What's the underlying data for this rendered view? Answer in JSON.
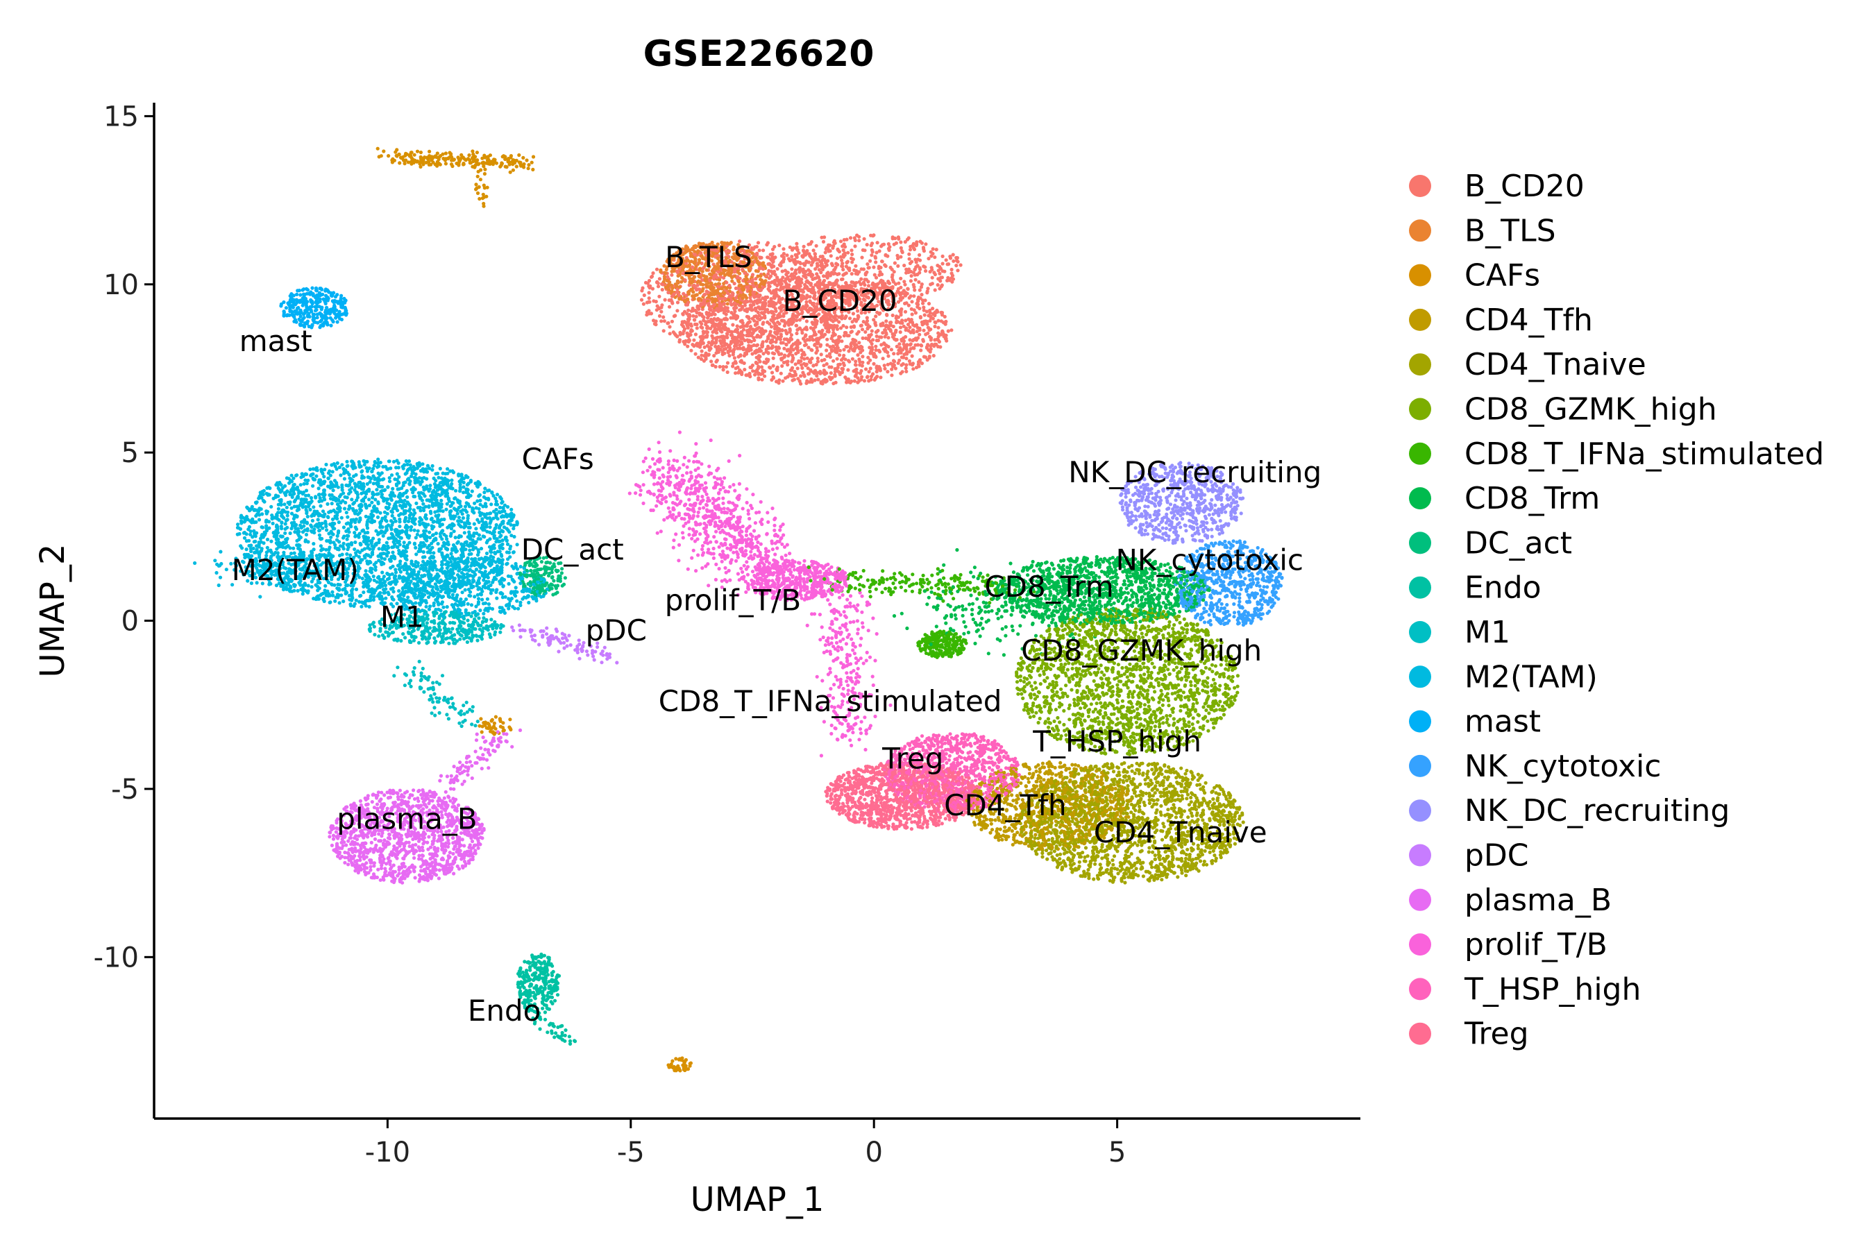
{
  "chart_data": {
    "type": "scatter",
    "title": "GSE226620",
    "xlabel": "UMAP_1",
    "ylabel": "UMAP_2",
    "xlim": [
      -14.8,
      10.0
    ],
    "ylim": [
      -14.8,
      15.4
    ],
    "x_ticks": [
      -10,
      -5,
      0,
      5
    ],
    "y_ticks": [
      -10,
      -5,
      0,
      5,
      10,
      15
    ],
    "grid": false,
    "legend_position": "right",
    "series": [
      {
        "name": "B_CD20",
        "color": "#F8766D",
        "label": "B_CD20",
        "label_x": -0.7,
        "label_y": 9.5
      },
      {
        "name": "B_TLS",
        "color": "#EA8331",
        "label": "B_TLS",
        "label_x": -3.4,
        "label_y": 10.8
      },
      {
        "name": "CAFs",
        "color": "#D89000",
        "label": "CAFs",
        "label_x": -6.5,
        "label_y": 4.8
      },
      {
        "name": "CD4_Tfh",
        "color": "#C09B00",
        "label": "CD4_Tfh",
        "label_x": 2.7,
        "label_y": -5.5
      },
      {
        "name": "CD4_Tnaive",
        "color": "#A3A500",
        "label": "CD4_Tnaive",
        "label_x": 6.3,
        "label_y": -6.3
      },
      {
        "name": "CD8_GZMK_high",
        "color": "#7CAE00",
        "label": "CD8_GZMK_high",
        "label_x": 5.5,
        "label_y": -0.9
      },
      {
        "name": "CD8_T_IFNa_stimulated",
        "color": "#39B600",
        "label": "CD8_T_IFNa_stimulated",
        "label_x": -0.9,
        "label_y": -2.4
      },
      {
        "name": "CD8_Trm",
        "color": "#00BB4E",
        "label": "CD8_Trm",
        "label_x": 3.6,
        "label_y": 1.0
      },
      {
        "name": "DC_act",
        "color": "#00BF7D",
        "label": "DC_act",
        "label_x": -6.2,
        "label_y": 2.1
      },
      {
        "name": "Endo",
        "color": "#00C1A3",
        "label": "Endo",
        "label_x": -7.6,
        "label_y": -11.6
      },
      {
        "name": "M1",
        "color": "#00BFC4",
        "label": "M1",
        "label_x": -9.7,
        "label_y": 0.1
      },
      {
        "name": "M2(TAM)",
        "color": "#00BAE0",
        "label": "M2(TAM)",
        "label_x": -11.9,
        "label_y": 1.5
      },
      {
        "name": "mast",
        "color": "#00B0F6",
        "label": "mast",
        "label_x": -12.3,
        "label_y": 8.3
      },
      {
        "name": "NK_cytotoxic",
        "color": "#35A2FF",
        "label": "NK_cytotoxic",
        "label_x": 6.9,
        "label_y": 1.8
      },
      {
        "name": "NK_DC_recruiting",
        "color": "#9590FF",
        "label": "NK_DC_recruiting",
        "label_x": 6.6,
        "label_y": 4.4
      },
      {
        "name": "pDC",
        "color": "#C77CFF",
        "label": "pDC",
        "label_x": -5.3,
        "label_y": -0.3
      },
      {
        "name": "plasma_B",
        "color": "#E76BF3",
        "label": "plasma_B",
        "label_x": -9.6,
        "label_y": -5.9
      },
      {
        "name": "prolif_T/B",
        "color": "#FA62DB",
        "label": "prolif_T/B",
        "label_x": -2.9,
        "label_y": 0.6
      },
      {
        "name": "T_HSP_high",
        "color": "#FF62BC",
        "label": "T_HSP_high",
        "label_x": 5.0,
        "label_y": -3.6
      },
      {
        "name": "Treg",
        "color": "#FF6C91",
        "label": "Treg",
        "label_x": 0.8,
        "label_y": -4.1
      }
    ]
  }
}
